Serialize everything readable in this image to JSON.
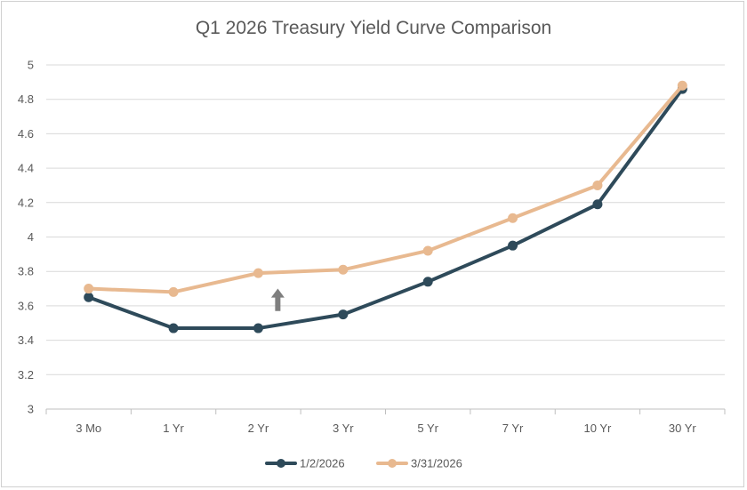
{
  "chart_data": {
    "type": "line",
    "title": "Q1 2026 Treasury Yield Curve Comparison",
    "xlabel": "",
    "ylabel": "",
    "categories": [
      "3 Mo",
      "1 Yr",
      "2 Yr",
      "3 Yr",
      "5 Yr",
      "7 Yr",
      "10 Yr",
      "30 Yr"
    ],
    "ylim": [
      3,
      5
    ],
    "yticks": [
      "3",
      "3.2",
      "3.4",
      "3.6",
      "3.8",
      "4",
      "4.2",
      "4.4",
      "4.6",
      "4.8",
      "5"
    ],
    "grid": true,
    "legend_position": "bottom",
    "series": [
      {
        "name": "1/2/2026",
        "color": "#2e4a5a",
        "values": [
          3.65,
          3.47,
          3.47,
          3.55,
          3.74,
          3.95,
          4.19,
          4.86
        ]
      },
      {
        "name": "3/31/2026",
        "color": "#e8b990",
        "values": [
          3.7,
          3.68,
          3.79,
          3.81,
          3.92,
          4.11,
          4.3,
          4.88
        ]
      }
    ],
    "annotations": [
      {
        "type": "arrow-up",
        "color": "#7f7f7f",
        "category": "2 Yr",
        "offset": 0.23,
        "y_from": 3.57,
        "y_to": 3.7
      }
    ]
  }
}
